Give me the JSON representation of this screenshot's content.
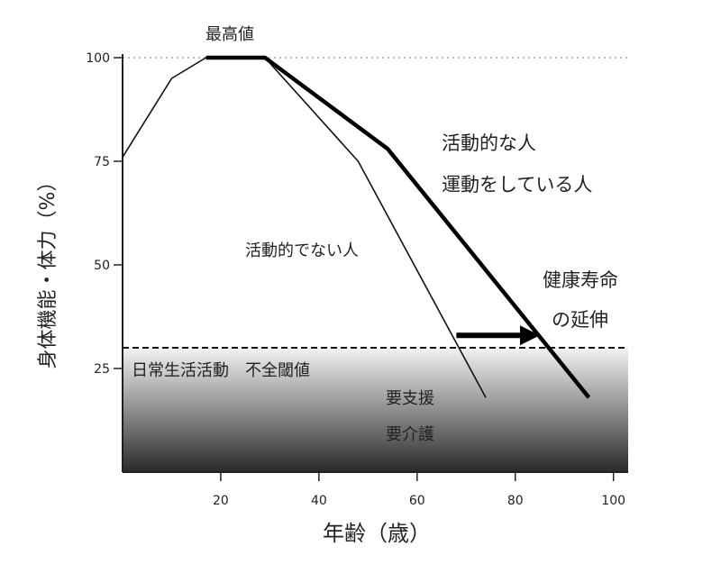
{
  "chart_data": {
    "type": "line",
    "xlabel": "年齢（歳）",
    "ylabel": "身体機能・体力（%）",
    "xlim": [
      0,
      103
    ],
    "ylim": [
      0,
      100
    ],
    "xticks": [
      20,
      40,
      60,
      80,
      100
    ],
    "yticks": [
      25,
      50,
      75,
      100
    ],
    "series": [
      {
        "name": "活動的な人 運動をしている人",
        "style": "thick",
        "points": [
          [
            17,
            100
          ],
          [
            29,
            100
          ],
          [
            54,
            78
          ],
          [
            95,
            18
          ]
        ]
      },
      {
        "name": "活動的でない人",
        "style": "thin",
        "points": [
          [
            0,
            76
          ],
          [
            10,
            95
          ],
          [
            17,
            100
          ],
          [
            29,
            100
          ],
          [
            48,
            75
          ],
          [
            74,
            18
          ]
        ]
      }
    ],
    "reference_lines": [
      {
        "y": 100,
        "style": "dotted",
        "color": "#bbbbbb"
      },
      {
        "y": 30,
        "style": "dashed",
        "color": "#111111"
      }
    ],
    "shaded_region": {
      "y_from": 0,
      "y_to": 30,
      "gradient": [
        "#f2f2f2",
        "#2a2a2a"
      ]
    },
    "arrow": {
      "from": [
        68,
        33
      ],
      "to": [
        85,
        33
      ]
    },
    "annotations": {
      "peak": "最高値",
      "active_line1": "活動的な人",
      "active_line2": "運動をしている人",
      "inactive": "活動的でない人",
      "threshold": "日常生活活動　不全閾値",
      "care_line1": "要支援",
      "care_line2": "要介護",
      "extension_line1": "健康寿命",
      "extension_line2": "の延伸"
    }
  }
}
